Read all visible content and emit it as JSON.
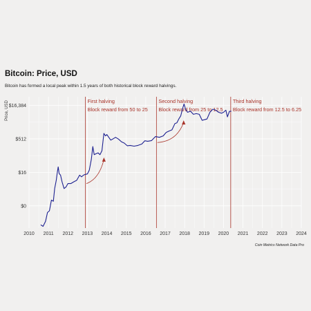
{
  "title": "Bitcoin: Price, USD",
  "subtitle": "Bitcoin has formed a local peak within 1.5 years of both historical block reward halvings.",
  "source": "Coin Metrics Network Data Pro",
  "colors": {
    "line": "#1c2090",
    "annotation": "#a83228",
    "background": "#f1f0ef",
    "grid": "#ffffff"
  },
  "chart_data": {
    "type": "line",
    "title": "Bitcoin: Price, USD",
    "ylabel": "Price, USD",
    "xlabel": "",
    "y_scale": "log",
    "grid": true,
    "xlim": [
      2010,
      2024
    ],
    "ylim": [
      0.05,
      40000
    ],
    "x_ticks": [
      "2010",
      "2011",
      "2012",
      "2013",
      "2014",
      "2015",
      "2016",
      "2017",
      "2018",
      "2019",
      "2020",
      "2021",
      "2022",
      "2023",
      "2024"
    ],
    "y_ticks": [
      {
        "label": "$0",
        "value": 0.5
      },
      {
        "label": "$16",
        "value": 16
      },
      {
        "label": "$512",
        "value": 512
      },
      {
        "label": "$16,384",
        "value": 16384
      }
    ],
    "series": [
      {
        "x": [
          2010.6,
          2010.72,
          2010.85,
          2010.95,
          2011.05,
          2011.15,
          2011.25,
          2011.32,
          2011.4,
          2011.45,
          2011.5,
          2011.55,
          2011.62,
          2011.7,
          2011.8,
          2011.9,
          2012.0,
          2012.15,
          2012.3,
          2012.45,
          2012.6,
          2012.7,
          2012.8,
          2012.9,
          2013.0,
          2013.1,
          2013.2,
          2013.28,
          2013.35,
          2013.45,
          2013.55,
          2013.65,
          2013.75,
          2013.85,
          2013.93,
          2014.0,
          2014.1,
          2014.2,
          2014.3,
          2014.45,
          2014.6,
          2014.75,
          2014.9,
          2015.05,
          2015.2,
          2015.4,
          2015.6,
          2015.8,
          2015.95,
          2016.1,
          2016.3,
          2016.5,
          2016.7,
          2016.9,
          2017.05,
          2017.2,
          2017.35,
          2017.5,
          2017.6,
          2017.7,
          2017.8,
          2017.9,
          2017.97,
          2018.05,
          2018.15,
          2018.3,
          2018.45,
          2018.6,
          2018.75,
          2018.9,
          2019.0,
          2019.15,
          2019.3,
          2019.45,
          2019.6,
          2019.75,
          2019.9,
          2020.0,
          2020.12,
          2020.2,
          2020.3,
          2020.4
        ],
        "y": [
          0.07,
          0.06,
          0.1,
          0.25,
          0.3,
          0.9,
          0.8,
          3,
          7,
          15,
          28,
          14,
          12,
          6,
          3,
          3.5,
          5,
          5,
          6,
          7,
          12,
          10,
          12,
          13,
          13.5,
          20,
          60,
          230,
          100,
          110,
          120,
          100,
          150,
          900,
          700,
          800,
          600,
          450,
          500,
          600,
          500,
          380,
          330,
          250,
          260,
          240,
          260,
          300,
          420,
          400,
          430,
          650,
          600,
          700,
          1000,
          1150,
          1300,
          2500,
          2700,
          4000,
          5500,
          12000,
          19000,
          11000,
          8000,
          9000,
          6500,
          7000,
          6500,
          3500,
          3700,
          4000,
          8000,
          11000,
          10000,
          8000,
          7300,
          8000,
          10000,
          5000,
          8800,
          9000
        ]
      }
    ],
    "annotations": [
      {
        "year": 2012.9,
        "lines": [
          "First halving",
          "Block reward from 50 to 25"
        ]
      },
      {
        "year": 2016.55,
        "lines": [
          "Second halving",
          "Block reward from 25 to 12.5"
        ]
      },
      {
        "year": 2020.37,
        "lines": [
          "Third halving",
          "Block reward from 12.5 to 6.25"
        ]
      }
    ]
  }
}
